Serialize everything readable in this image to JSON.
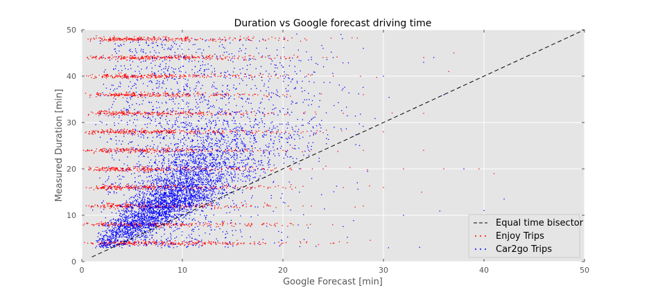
{
  "chart_data": {
    "type": "scatter",
    "title": "Duration vs Google forecast driving time",
    "xlabel": "Google Forecast [min]",
    "ylabel": "Measured Duration [min]",
    "xlim": [
      0,
      50
    ],
    "ylim": [
      0,
      50
    ],
    "xticks": [
      "0",
      "10",
      "20",
      "30",
      "40",
      "50"
    ],
    "yticks": [
      "0",
      "10",
      "20",
      "30",
      "40",
      "50"
    ],
    "grid": true,
    "background": "#e5e5e5",
    "legend_position": "bottom-right",
    "series": [
      {
        "name": "Equal time bisector",
        "kind": "line",
        "style": "dashed",
        "color": "#000000",
        "x": [
          1,
          50
        ],
        "y": [
          1,
          50
        ]
      },
      {
        "name": "Enjoy Trips",
        "kind": "scatter",
        "color": "#ff0000",
        "note_bands": [
          4,
          8,
          12,
          16,
          20,
          24,
          28,
          32,
          36,
          40,
          44,
          48
        ],
        "x": [
          1.0,
          2.0,
          3.0,
          5.0,
          8.0,
          12.0,
          15.0,
          20.0,
          25.0,
          1.0,
          3.0,
          6.0,
          10.0,
          14.0,
          18.0,
          1.0,
          4.0,
          8.0,
          12.0,
          16.0,
          22.0,
          28.0,
          2.0,
          5.0,
          10.0,
          15.0,
          20.0,
          26.0,
          30.0,
          2.0,
          6.0,
          12.0,
          18.0,
          24.0,
          32.0,
          36.0,
          1.0,
          6.0,
          12.0,
          20.0,
          28.0,
          34.0,
          2.0,
          8.0,
          14.0,
          22.0,
          30.0,
          3.0,
          10.0,
          18.0,
          26.0,
          34.0,
          4.0,
          12.0,
          20.0,
          28.0,
          5.0,
          15.0,
          25.0,
          6.0,
          16.0,
          24.0,
          34.0,
          39.5,
          41.0,
          36.5,
          37.0,
          33.8
        ],
        "y": [
          4.0,
          4.0,
          4.0,
          4.0,
          4.0,
          4.0,
          4.0,
          4.0,
          4.0,
          8.0,
          8.0,
          8.0,
          8.0,
          8.0,
          8.0,
          12.0,
          12.0,
          12.0,
          12.0,
          12.0,
          12.0,
          12.0,
          16.0,
          16.0,
          16.0,
          16.0,
          16.0,
          16.0,
          16.0,
          20.0,
          20.0,
          20.0,
          20.0,
          20.0,
          20.0,
          20.0,
          24.0,
          24.0,
          24.0,
          24.0,
          24.0,
          24.0,
          28.0,
          28.0,
          28.0,
          28.0,
          28.0,
          32.0,
          32.0,
          32.0,
          32.0,
          32.0,
          36.0,
          36.0,
          36.0,
          36.0,
          40.0,
          40.0,
          40.0,
          44.0,
          44.0,
          44.0,
          44.0,
          20.0,
          19.0,
          41.0,
          45.0,
          15.0
        ]
      },
      {
        "name": "Car2go Trips",
        "kind": "scatter",
        "color": "#0000ff",
        "x": [
          3.0,
          5.0,
          7.0,
          9.0,
          11.0,
          13.0,
          6.0,
          8.0,
          10.0,
          12.0,
          15.0,
          18.0,
          4.0,
          7.0,
          10.0,
          14.0,
          20.0,
          25.0,
          30.0,
          5.0,
          9.0,
          13.0,
          18.0,
          24.0,
          2.0,
          6.0,
          12.0,
          20.0,
          28.0,
          32.0,
          35.0,
          38.0,
          42.0,
          40.0,
          36.0,
          34.0,
          30.5
        ],
        "y": [
          4.0,
          6.0,
          10.0,
          14.0,
          18.0,
          22.0,
          12.0,
          16.0,
          20.0,
          24.0,
          28.0,
          32.0,
          20.0,
          26.0,
          30.0,
          36.0,
          40.0,
          44.0,
          40.0,
          40.0,
          44.0,
          48.0,
          48.0,
          46.0,
          30.0,
          34.0,
          38.0,
          42.0,
          46.0,
          10.0,
          44.0,
          20.0,
          13.5,
          11.0,
          36.0,
          43.0,
          3.0
        ]
      }
    ]
  }
}
